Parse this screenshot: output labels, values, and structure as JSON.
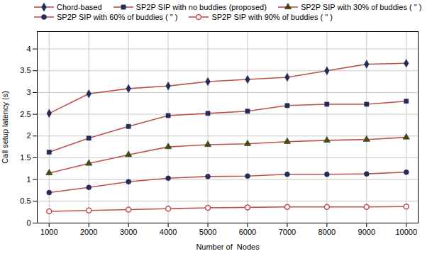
{
  "chart_data": {
    "type": "line",
    "x": [
      1000,
      2000,
      3000,
      4000,
      5000,
      6000,
      7000,
      8000,
      9000,
      10000
    ],
    "series": [
      {
        "name": "Chord-based",
        "color": "#c0504d",
        "marker": "diamond",
        "values": [
          2.52,
          2.97,
          3.09,
          3.15,
          3.25,
          3.3,
          3.35,
          3.5,
          3.65,
          3.67
        ]
      },
      {
        "name": "SP2P SIP with no buddies (proposed)",
        "color": "#c0504d",
        "marker": "square",
        "values": [
          1.63,
          1.95,
          2.22,
          2.47,
          2.52,
          2.57,
          2.7,
          2.73,
          2.73,
          2.8
        ]
      },
      {
        "name": "SP2P SIP with 30% of buddies ( \" )",
        "color": "#c0504d",
        "marker": "triangle",
        "values": [
          1.15,
          1.37,
          1.57,
          1.75,
          1.8,
          1.82,
          1.87,
          1.9,
          1.92,
          1.97
        ]
      },
      {
        "name": "SP2P SIP with 60% of buddies ( \" )",
        "color": "#c0504d",
        "marker": "circle",
        "values": [
          0.7,
          0.82,
          0.95,
          1.03,
          1.07,
          1.08,
          1.12,
          1.12,
          1.13,
          1.17
        ]
      },
      {
        "name": "SP2P SIP with 90% of buddies ( \" )",
        "color": "#c0504d",
        "marker": "open_circle",
        "values": [
          0.27,
          0.29,
          0.31,
          0.33,
          0.35,
          0.36,
          0.37,
          0.37,
          0.37,
          0.38
        ]
      }
    ],
    "xlabel": "Number of  Nodes",
    "ylabel": "Call setup latency (s)",
    "xlim": [
      700,
      10300
    ],
    "xticks": [
      1000,
      2000,
      3000,
      4000,
      5000,
      6000,
      7000,
      8000,
      9000,
      10000
    ],
    "ylim": [
      0,
      4.4
    ],
    "yticks": [
      0,
      0.5,
      1,
      1.5,
      2,
      2.5,
      3,
      3.5,
      4
    ],
    "grid": true,
    "legend": "top"
  }
}
